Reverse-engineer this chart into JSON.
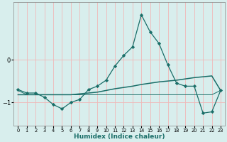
{
  "xlabel": "Humidex (Indice chaleur)",
  "background_color": "#d8eeed",
  "grid_color": "#c0dede",
  "line_color": "#1a6e68",
  "xlim": [
    -0.5,
    23.5
  ],
  "ylim": [
    -1.55,
    1.35
  ],
  "yticks": [
    0,
    -1
  ],
  "xticks": [
    0,
    1,
    2,
    3,
    4,
    5,
    6,
    7,
    8,
    9,
    10,
    11,
    12,
    13,
    14,
    15,
    16,
    17,
    18,
    19,
    20,
    21,
    22,
    23
  ],
  "line1_x": [
    0,
    1,
    2,
    3,
    4,
    5,
    6,
    7,
    8,
    9,
    10,
    11,
    12,
    13,
    14,
    15,
    16,
    17,
    18,
    19,
    20,
    21,
    22,
    23
  ],
  "line1_y": [
    -0.7,
    -0.78,
    -0.78,
    -0.88,
    -1.05,
    -1.15,
    -1.0,
    -0.93,
    -0.7,
    -0.62,
    -0.48,
    -0.15,
    0.1,
    0.3,
    1.05,
    0.65,
    0.38,
    -0.12,
    -0.55,
    -0.62,
    -0.62,
    -1.25,
    -1.22,
    -0.72
  ],
  "line2_x": [
    0,
    1,
    2,
    3,
    4,
    5,
    6,
    7,
    8,
    9,
    10,
    11,
    12,
    13,
    14,
    15,
    16,
    17,
    18,
    19,
    20,
    21,
    22,
    23
  ],
  "line2_y": [
    -0.82,
    -0.82,
    -0.82,
    -0.82,
    -0.82,
    -0.82,
    -0.82,
    -0.8,
    -0.78,
    -0.76,
    -0.72,
    -0.68,
    -0.65,
    -0.62,
    -0.58,
    -0.55,
    -0.52,
    -0.5,
    -0.48,
    -0.45,
    -0.42,
    -0.4,
    -0.38,
    -0.72
  ],
  "line3_x": [
    0,
    1,
    2,
    3,
    4,
    5,
    6,
    7,
    8,
    9,
    10,
    11,
    12,
    13,
    14,
    15,
    16,
    17,
    18,
    19,
    20,
    21,
    22,
    23
  ],
  "line3_y": [
    -0.72,
    -0.82,
    -0.82,
    -0.82,
    -0.82,
    -0.82,
    -0.82,
    -0.82,
    -0.82,
    -0.82,
    -0.82,
    -0.82,
    -0.82,
    -0.82,
    -0.82,
    -0.82,
    -0.82,
    -0.82,
    -0.82,
    -0.82,
    -0.82,
    -0.82,
    -0.82,
    -0.72
  ]
}
